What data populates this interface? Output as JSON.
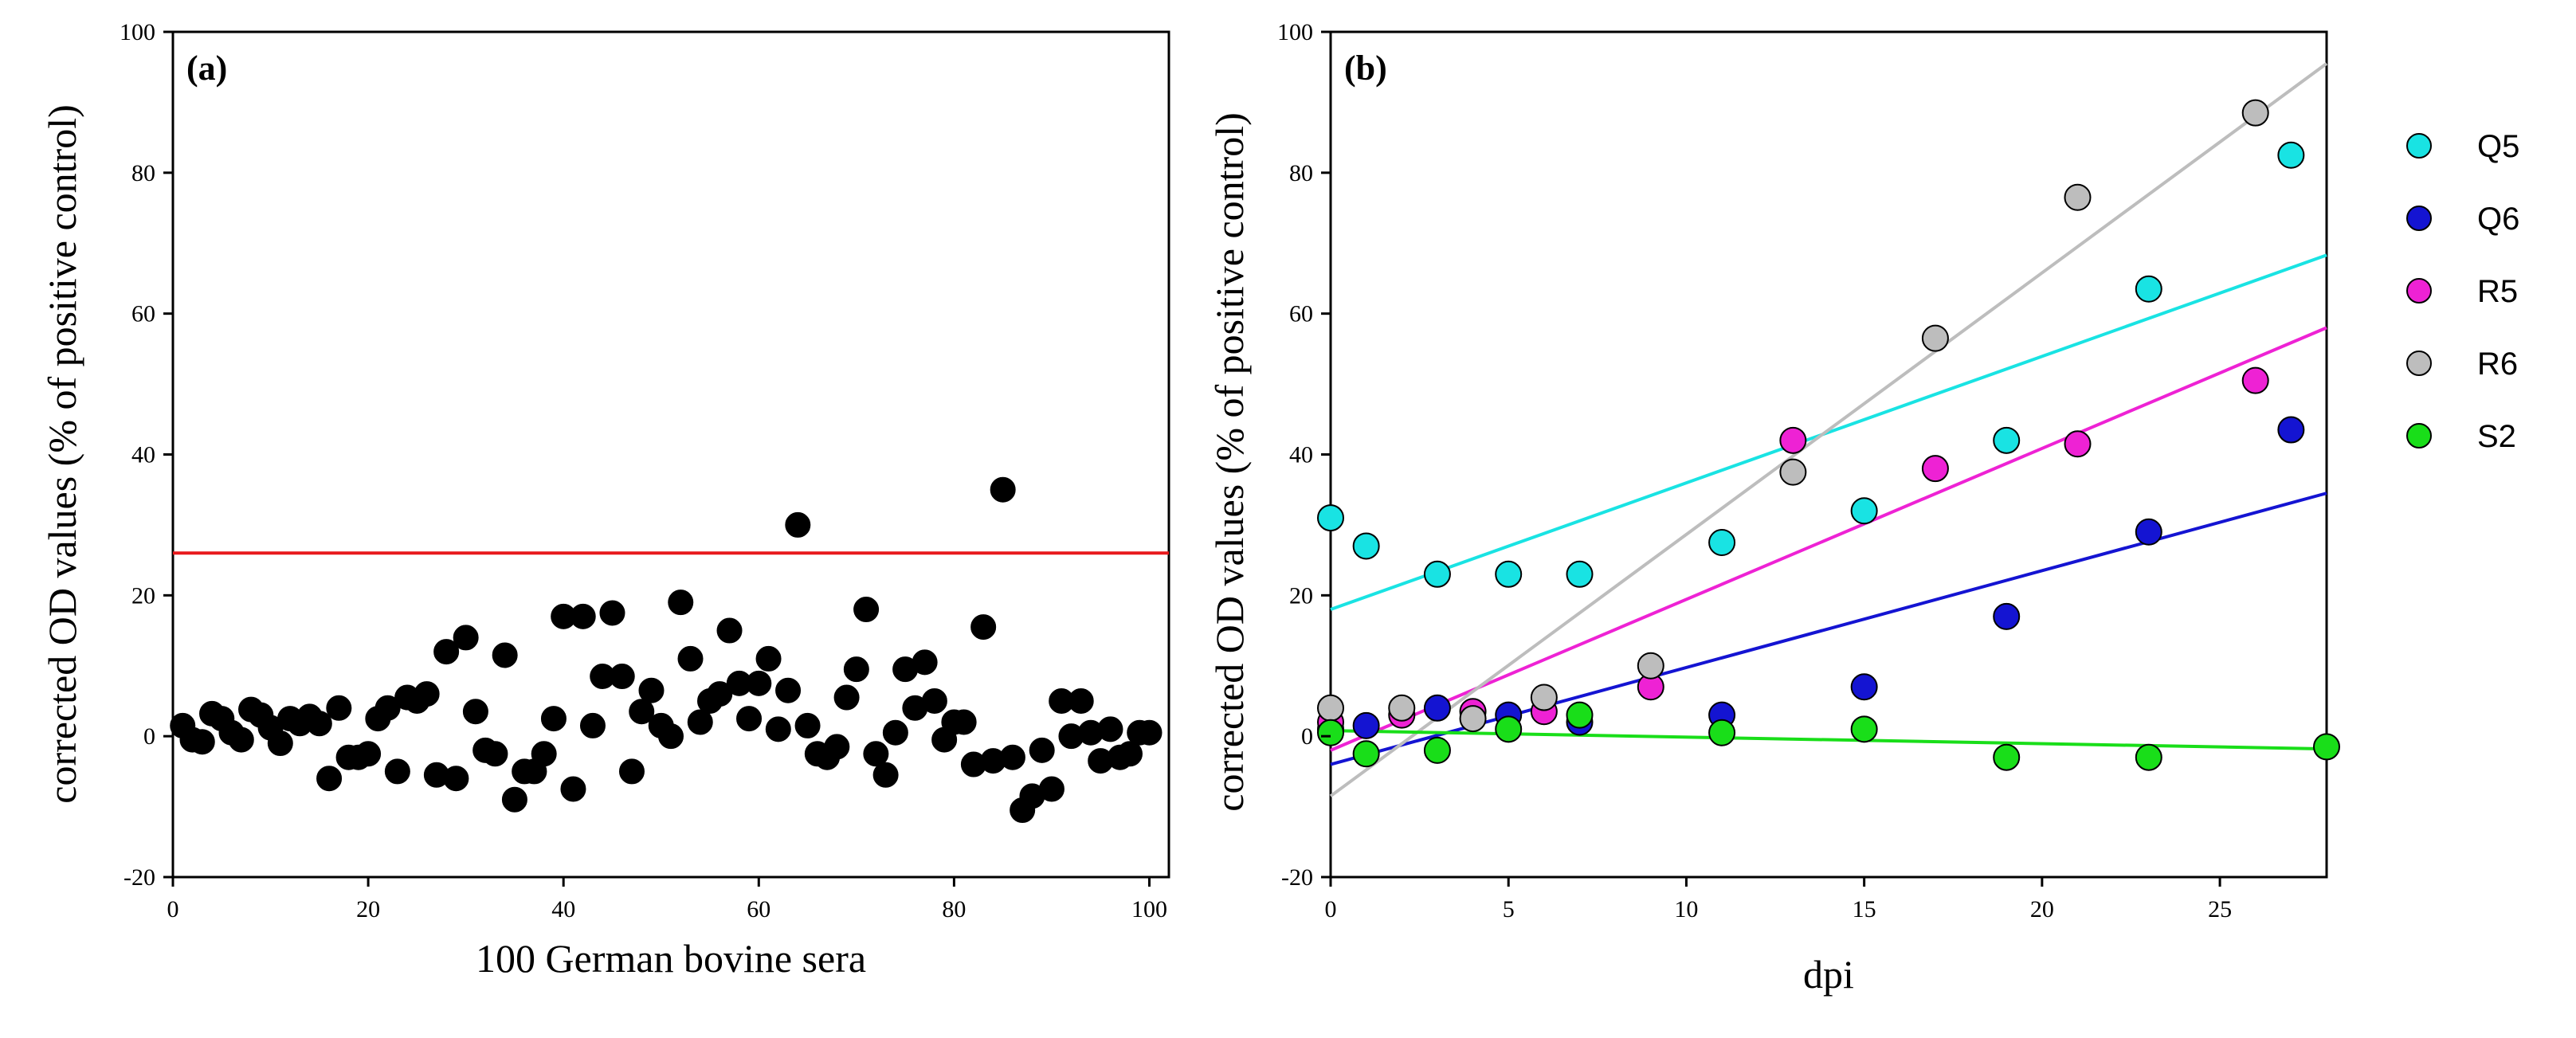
{
  "chart_data": [
    {
      "type": "scatter",
      "panel_label": "(a)",
      "xlabel": "100 German bovine sera",
      "ylabel": "corrected OD values (% of positive control)",
      "xlim": [
        0,
        102
      ],
      "ylim": [
        -20,
        100
      ],
      "xticks": [
        0,
        20,
        40,
        60,
        80,
        100
      ],
      "yticks": [
        -20,
        0,
        20,
        40,
        60,
        80,
        100
      ],
      "grid": false,
      "point_color": "#000000",
      "threshold": {
        "y": 26,
        "color": "#e8191c"
      },
      "points": [
        [
          1,
          1.5
        ],
        [
          2,
          -0.5
        ],
        [
          3,
          -0.8
        ],
        [
          4,
          3.2
        ],
        [
          5,
          2.5
        ],
        [
          6,
          0.5
        ],
        [
          7,
          -0.5
        ],
        [
          8,
          3.8
        ],
        [
          9,
          3
        ],
        [
          10,
          1.2
        ],
        [
          11,
          -1
        ],
        [
          12,
          2.5
        ],
        [
          13,
          1.8
        ],
        [
          14,
          2.8
        ],
        [
          15,
          1.8
        ],
        [
          16,
          -6
        ],
        [
          17,
          4
        ],
        [
          18,
          -3
        ],
        [
          19,
          -3
        ],
        [
          20,
          -2.5
        ],
        [
          21,
          2.5
        ],
        [
          22,
          4
        ],
        [
          23,
          -5
        ],
        [
          24,
          5.5
        ],
        [
          25,
          5
        ],
        [
          26,
          6
        ],
        [
          27,
          -5.5
        ],
        [
          28,
          12
        ],
        [
          29,
          -6
        ],
        [
          30,
          14
        ],
        [
          31,
          3.5
        ],
        [
          32,
          -2
        ],
        [
          33,
          -2.5
        ],
        [
          34,
          11.5
        ],
        [
          35,
          -9
        ],
        [
          36,
          -5
        ],
        [
          37,
          -5
        ],
        [
          38,
          -2.5
        ],
        [
          39,
          2.5
        ],
        [
          40,
          17
        ],
        [
          41,
          -7.5
        ],
        [
          42,
          17
        ],
        [
          43,
          1.5
        ],
        [
          44,
          8.5
        ],
        [
          45,
          17.5
        ],
        [
          46,
          8.5
        ],
        [
          47,
          -5
        ],
        [
          48,
          3.5
        ],
        [
          49,
          6.5
        ],
        [
          50,
          1.5
        ],
        [
          51,
          0
        ],
        [
          52,
          19
        ],
        [
          53,
          11
        ],
        [
          54,
          2
        ],
        [
          55,
          5
        ],
        [
          56,
          6
        ],
        [
          57,
          15
        ],
        [
          58,
          7.5
        ],
        [
          59,
          2.5
        ],
        [
          60,
          7.5
        ],
        [
          61,
          11
        ],
        [
          62,
          1
        ],
        [
          63,
          6.5
        ],
        [
          64,
          30
        ],
        [
          65,
          1.5
        ],
        [
          66,
          -2.5
        ],
        [
          67,
          -3
        ],
        [
          68,
          -1.5
        ],
        [
          69,
          5.5
        ],
        [
          70,
          9.5
        ],
        [
          71,
          18
        ],
        [
          72,
          -2.5
        ],
        [
          73,
          -5.5
        ],
        [
          74,
          0.5
        ],
        [
          75,
          9.5
        ],
        [
          76,
          4
        ],
        [
          77,
          10.5
        ],
        [
          78,
          5
        ],
        [
          79,
          -0.5
        ],
        [
          80,
          2
        ],
        [
          81,
          2
        ],
        [
          82,
          -4
        ],
        [
          83,
          15.5
        ],
        [
          84,
          -3.5
        ],
        [
          85,
          35
        ],
        [
          86,
          -3
        ],
        [
          87,
          -10.5
        ],
        [
          88,
          -8.5
        ],
        [
          89,
          -2
        ],
        [
          90,
          -7.5
        ],
        [
          91,
          5
        ],
        [
          92,
          0
        ],
        [
          93,
          5
        ],
        [
          94,
          0.5
        ],
        [
          95,
          -3.5
        ],
        [
          96,
          1
        ],
        [
          97,
          -3
        ],
        [
          98,
          -2.5
        ],
        [
          99,
          0.5
        ],
        [
          100,
          0.5
        ]
      ]
    },
    {
      "type": "scatter",
      "panel_label": "(b)",
      "xlabel": "dpi",
      "ylabel": "corrected OD values (% of positive control)",
      "xlim": [
        0,
        28
      ],
      "ylim": [
        -20,
        100
      ],
      "xticks": [
        0,
        5,
        10,
        15,
        20,
        25
      ],
      "yticks": [
        -20,
        0,
        20,
        40,
        60,
        80,
        100
      ],
      "grid": false,
      "legend_position": "right",
      "series": [
        {
          "name": "Q5",
          "color": "#19e3e3",
          "points": [
            [
              0,
              31
            ],
            [
              1,
              27
            ],
            [
              3,
              23
            ],
            [
              5,
              23
            ],
            [
              7,
              23
            ],
            [
              11,
              27.5
            ],
            [
              15,
              32
            ],
            [
              19,
              42
            ],
            [
              23,
              63.5
            ],
            [
              27,
              82.5
            ]
          ],
          "trend": [
            [
              0,
              18
            ],
            [
              28,
              68.3
            ]
          ]
        },
        {
          "name": "Q6",
          "color": "#1414d2",
          "points": [
            [
              0,
              1
            ],
            [
              1,
              1.5
            ],
            [
              3,
              4
            ],
            [
              5,
              3
            ],
            [
              7,
              2
            ],
            [
              11,
              3
            ],
            [
              15,
              7
            ],
            [
              19,
              17
            ],
            [
              23,
              29
            ],
            [
              27,
              43.5
            ]
          ],
          "trend": [
            [
              0,
              -4
            ],
            [
              28,
              34.5
            ]
          ]
        },
        {
          "name": "R5",
          "color": "#ee22d4",
          "points": [
            [
              0,
              2
            ],
            [
              2,
              3
            ],
            [
              4,
              3.5
            ],
            [
              6,
              3.5
            ],
            [
              9,
              7
            ],
            [
              13,
              42
            ],
            [
              17,
              38
            ],
            [
              21,
              41.5
            ],
            [
              26,
              50.5
            ]
          ],
          "trend": [
            [
              0,
              -2
            ],
            [
              28,
              58
            ]
          ]
        },
        {
          "name": "R6",
          "color": "#bdbdbd",
          "points": [
            [
              0,
              4
            ],
            [
              2,
              4
            ],
            [
              4,
              2.5
            ],
            [
              6,
              5.5
            ],
            [
              9,
              10
            ],
            [
              13,
              37.5
            ],
            [
              17,
              56.5
            ],
            [
              21,
              76.5
            ],
            [
              26,
              88.5
            ]
          ],
          "trend": [
            [
              0,
              -8.5
            ],
            [
              28,
              95.5
            ]
          ]
        },
        {
          "name": "S2",
          "color": "#19de19",
          "points": [
            [
              0,
              0.5
            ],
            [
              1,
              -2.5
            ],
            [
              3,
              -2
            ],
            [
              5,
              1
            ],
            [
              7,
              3
            ],
            [
              11,
              0.5
            ],
            [
              15,
              1
            ],
            [
              19,
              -3
            ],
            [
              23,
              -3
            ],
            [
              28,
              -1.5
            ]
          ],
          "trend": [
            [
              0,
              0.8
            ],
            [
              28,
              -1.8
            ]
          ]
        }
      ]
    }
  ]
}
